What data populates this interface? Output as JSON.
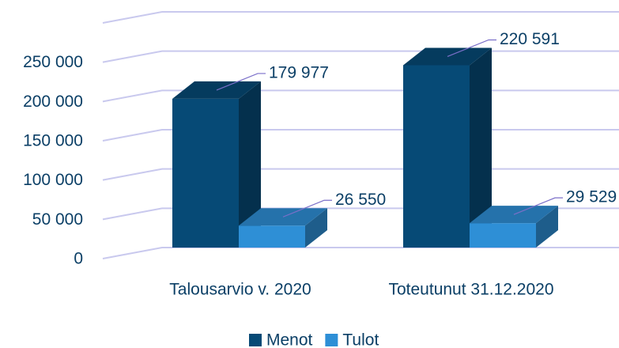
{
  "chart_data": {
    "type": "bar3d",
    "categories": [
      "Talousarvio v. 2020",
      "Toteutunut 31.12.2020"
    ],
    "series": [
      {
        "name": "Menot",
        "color": "#064a76",
        "values": [
          179977,
          220591
        ],
        "value_labels": [
          "179 977",
          "220 591"
        ]
      },
      {
        "name": "Tulot",
        "color": "#2e8fd6",
        "values": [
          26550,
          29529
        ],
        "value_labels": [
          "26 550",
          "29 529"
        ]
      }
    ],
    "ylim": [
      0,
      300000
    ],
    "yticks": [
      0,
      {
        "value": 50000,
        "label": "50 000"
      },
      {
        "value": 100000,
        "label": "100 000"
      },
      {
        "value": 150000,
        "label": "150 000"
      },
      {
        "value": 200000,
        "label": "200 000"
      },
      {
        "value": 250000,
        "label": "250 000"
      }
    ],
    "grid": true,
    "legend": "bottom"
  }
}
